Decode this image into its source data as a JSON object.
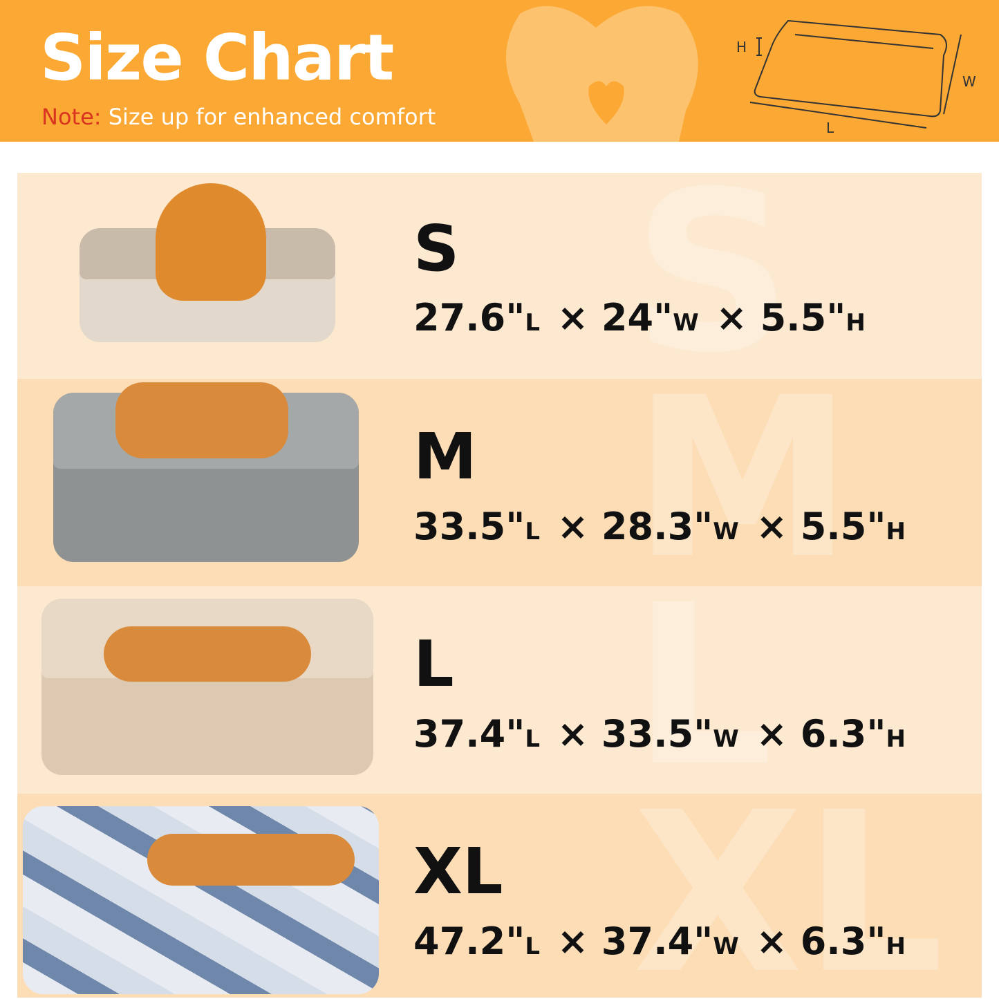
{
  "header": {
    "title": "Size Chart",
    "note_label": "Note:",
    "note_text": " Size up for enhanced comfort",
    "diagram_labels": {
      "h": "H",
      "w": "W",
      "l": "L"
    }
  },
  "colors": {
    "header": "#FBA934",
    "note_label": "#D9341F",
    "row_light": "#FDE9CF",
    "row_dark": "#FCDDB5"
  },
  "sizes": [
    {
      "size": "S",
      "length": "27.6\"",
      "width": "24\"",
      "height": "5.5\"",
      "unit_l": "L",
      "unit_w": "W",
      "unit_h": "H",
      "sep": "×",
      "bed_color": "#D8CDBF",
      "dog": "pomeranian"
    },
    {
      "size": "M",
      "length": "33.5\"",
      "width": "28.3\"",
      "height": "5.5\"",
      "unit_l": "L",
      "unit_w": "W",
      "unit_h": "H",
      "sep": "×",
      "bed_color": "#8E9292",
      "dog": "shiba"
    },
    {
      "size": "L",
      "length": "37.4\"",
      "width": "33.5\"",
      "height": "6.3\"",
      "unit_l": "L",
      "unit_w": "W",
      "unit_h": "H",
      "sep": "×",
      "bed_color": "#DDC8B2",
      "dog": "shiba"
    },
    {
      "size": "XL",
      "length": "47.2\"",
      "width": "37.4\"",
      "height": "6.3\"",
      "unit_l": "L",
      "unit_w": "W",
      "unit_h": "H",
      "sep": "×",
      "bed_color": "#C9D3E0",
      "dog": "shiba"
    }
  ]
}
